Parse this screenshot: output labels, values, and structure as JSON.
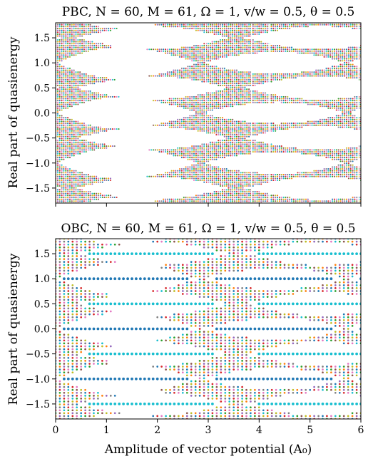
{
  "chart_data": [
    {
      "type": "scatter",
      "panel": "top",
      "title": "PBC, N = 60, M = 61, Ω = 1, v/w = 0.5, θ = 0.5",
      "xlabel": "",
      "ylabel": "Real part of quasienergy",
      "xlim": [
        0,
        6
      ],
      "ylim": [
        -1.8,
        1.8
      ],
      "x_ticks": [
        0,
        1,
        2,
        3,
        4,
        5,
        6
      ],
      "x_tick_labels": [
        "",
        "",
        "",
        "",
        "",
        "",
        ""
      ],
      "y_ticks": [
        -1.5,
        -1.0,
        -0.5,
        0.0,
        0.5,
        1.0,
        1.5
      ],
      "y_tick_labels": [
        "−1.5",
        "−1.0",
        "−0.5",
        "0.0",
        "0.5",
        "1.0",
        "1.5"
      ],
      "band_edges": [
        {
          "x": [
            0,
            0.3,
            0.6,
            0.9,
            1.2,
            1.5,
            1.75,
            2.0,
            2.4,
            2.8,
            3.2,
            3.6,
            4.0,
            4.4,
            4.8,
            5.2,
            5.6,
            6.0
          ],
          "y": [
            0.0,
            0.02,
            0.06,
            0.15,
            0.28,
            0.34,
            0.38,
            0.34,
            0.24,
            0.17,
            0.14,
            0.17,
            0.22,
            0.26,
            0.28,
            0.26,
            0.22,
            0.18
          ]
        }
      ],
      "gap_centers_y": [
        -1.0,
        -0.5,
        0.0,
        0.5,
        1.0
      ],
      "grid": false
    },
    {
      "type": "scatter",
      "panel": "bottom",
      "title": "OBC, N = 60, M = 61, Ω = 1, v/w = 0.5, θ = 0.5",
      "xlabel": "Amplitude of vector potential (A₀)",
      "ylabel": "Real part of quasienergy",
      "xlim": [
        0,
        6
      ],
      "ylim": [
        -1.8,
        1.8
      ],
      "x_ticks": [
        0,
        1,
        2,
        3,
        4,
        5,
        6
      ],
      "x_tick_labels": [
        "0",
        "1",
        "2",
        "3",
        "4",
        "5",
        "6"
      ],
      "y_ticks": [
        -1.5,
        -1.0,
        -0.5,
        0.0,
        0.5,
        1.0,
        1.5
      ],
      "y_tick_labels": [
        "−1.5",
        "−1.0",
        "−0.5",
        "0.0",
        "0.5",
        "1.0",
        "1.5"
      ],
      "edge_state_levels_y": [
        -1.5,
        -1.0,
        -0.5,
        0.0,
        0.5,
        1.0,
        1.5
      ],
      "grid": false
    }
  ]
}
